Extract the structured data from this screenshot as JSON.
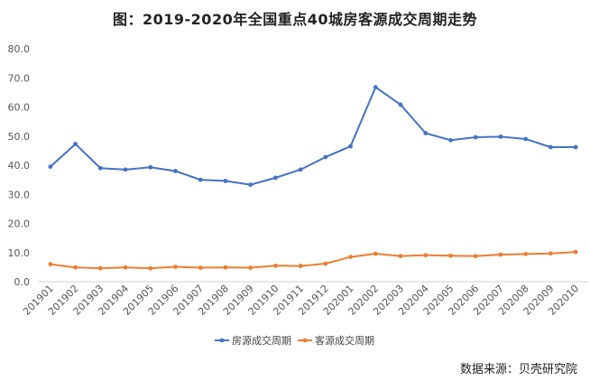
{
  "chart_data": {
    "type": "line",
    "title": "图：2019-2020年全国重点40城房客源成交周期走势",
    "xlabel": "",
    "ylabel": "",
    "ylim": [
      0,
      80
    ],
    "yticks": [
      "0.0",
      "10.0",
      "20.0",
      "30.0",
      "40.0",
      "50.0",
      "60.0",
      "70.0",
      "80.0"
    ],
    "grid": false,
    "legend_position": "bottom",
    "categories": [
      "201901",
      "201902",
      "201903",
      "201904",
      "201905",
      "201906",
      "201907",
      "201908",
      "201909",
      "201910",
      "201911",
      "201912",
      "202001",
      "202002",
      "202003",
      "202004",
      "202005",
      "202006",
      "202007",
      "202008",
      "202009",
      "202010"
    ],
    "series": [
      {
        "name": "房源成交周期",
        "color": "#4472C4",
        "values": [
          39.5,
          47.3,
          39.0,
          38.5,
          39.3,
          38.0,
          35.0,
          34.6,
          33.3,
          35.7,
          38.5,
          42.8,
          46.5,
          66.8,
          60.8,
          51.0,
          48.6,
          49.6,
          49.8,
          49.0,
          46.2,
          46.2
        ]
      },
      {
        "name": "客源成交周期",
        "color": "#ED7D31",
        "values": [
          6.0,
          4.9,
          4.6,
          4.9,
          4.6,
          5.1,
          4.8,
          4.9,
          4.8,
          5.5,
          5.4,
          6.2,
          8.5,
          9.6,
          8.8,
          9.1,
          8.9,
          8.8,
          9.3,
          9.5,
          9.7,
          10.2
        ]
      }
    ]
  },
  "source_note": "数据来源：贝壳研究院"
}
